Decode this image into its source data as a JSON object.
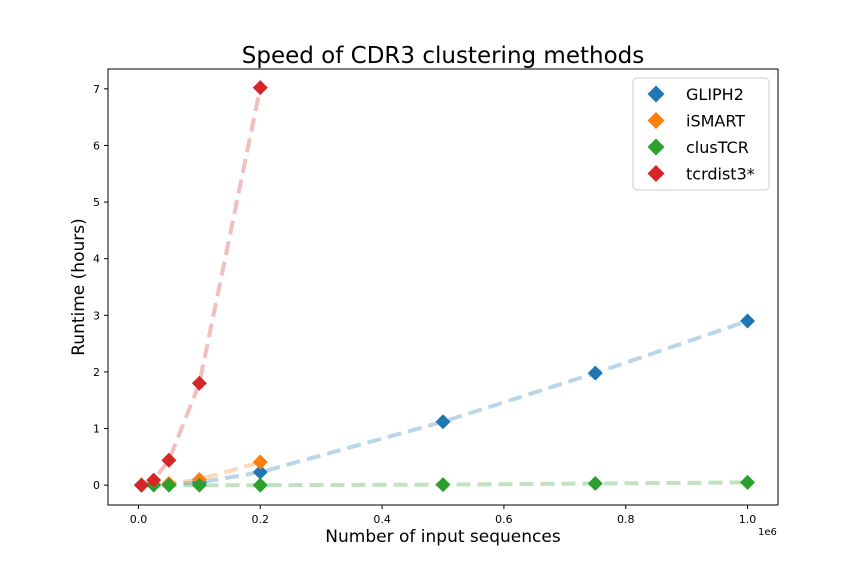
{
  "chart_data": {
    "type": "scatter",
    "title": "Speed of CDR3 clustering methods",
    "xlabel": "Number of input sequences",
    "ylabel": "Runtime (hours)",
    "x_offset_label": "1e6",
    "xlim": [
      -50000,
      1050000
    ],
    "ylim": [
      -0.35,
      7.35
    ],
    "x_ticks": [
      0,
      200000,
      400000,
      600000,
      800000,
      1000000
    ],
    "x_tick_labels": [
      "0.0",
      "0.2",
      "0.4",
      "0.6",
      "0.8",
      "1.0"
    ],
    "y_ticks": [
      0,
      1,
      2,
      3,
      4,
      5,
      6,
      7
    ],
    "y_tick_labels": [
      "0",
      "1",
      "2",
      "3",
      "4",
      "5",
      "6",
      "7"
    ],
    "grid": false,
    "legend_position": "top-right",
    "series": [
      {
        "name": "GLIPH2",
        "color": "#1f77b4",
        "x": [
          5000,
          25000,
          50000,
          100000,
          200000,
          500000,
          750000,
          1000000
        ],
        "y": [
          0.0,
          0.01,
          0.02,
          0.05,
          0.23,
          1.12,
          1.98,
          2.9
        ]
      },
      {
        "name": "iSMART",
        "color": "#ff7f0e",
        "x": [
          5000,
          25000,
          50000,
          100000,
          200000
        ],
        "y": [
          0.0,
          0.01,
          0.03,
          0.1,
          0.41
        ]
      },
      {
        "name": "clusTCR",
        "color": "#2ca02c",
        "x": [
          5000,
          25000,
          50000,
          100000,
          200000,
          500000,
          750000,
          1000000
        ],
        "y": [
          0.0,
          0.0,
          0.0,
          0.0,
          0.0,
          0.01,
          0.03,
          0.05
        ]
      },
      {
        "name": "tcrdist3*",
        "color": "#d62728",
        "x": [
          5000,
          25000,
          50000,
          100000,
          200000
        ],
        "y": [
          0.0,
          0.09,
          0.44,
          1.8,
          7.02
        ]
      }
    ]
  }
}
